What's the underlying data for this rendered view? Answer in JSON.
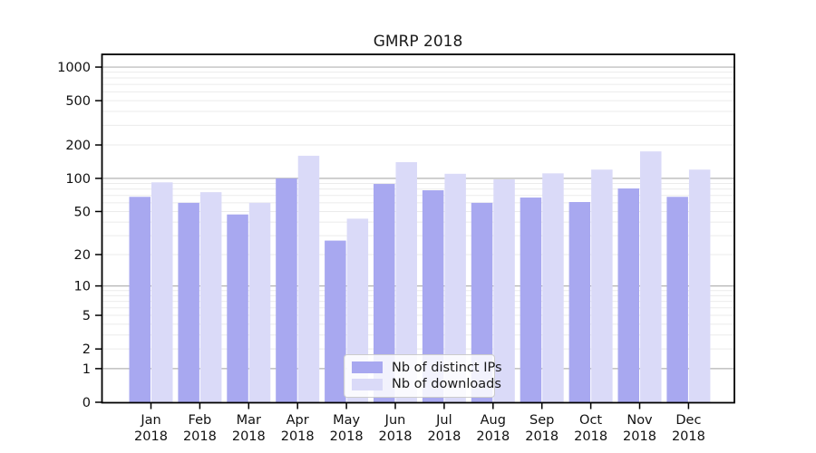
{
  "chart_data": {
    "type": "bar",
    "title": "GMRP 2018",
    "categories": [
      "Jan 2018",
      "Feb 2018",
      "Mar 2018",
      "Apr 2018",
      "May 2018",
      "Jun 2018",
      "Jul 2018",
      "Aug 2018",
      "Sep 2018",
      "Oct 2018",
      "Nov 2018",
      "Dec 2018"
    ],
    "series": [
      {
        "name": "Nb of distinct IPs",
        "color": "#a8a8f0",
        "values": [
          68,
          60,
          47,
          100,
          27,
          89,
          78,
          60,
          67,
          61,
          81,
          68
        ]
      },
      {
        "name": "Nb of downloads",
        "color": "#dadaf8",
        "values": [
          92,
          75,
          60,
          160,
          43,
          140,
          110,
          98,
          111,
          120,
          175,
          120
        ]
      }
    ],
    "xlabel": "",
    "ylabel": "",
    "yscale": "log10(value+1)",
    "ylim": [
      0,
      1300
    ],
    "yticks": [
      0,
      1,
      2,
      5,
      10,
      20,
      50,
      100,
      200,
      500,
      1000
    ],
    "major_gridlines": [
      1,
      10,
      100,
      1000
    ],
    "grid": true,
    "legend_position": "lower center",
    "colors": {
      "background": "#ffffff",
      "axis": "#000000",
      "grid_major": "#b3b3b3",
      "grid_minor": "#ebebeb",
      "text": "#1a1a1a",
      "legend_border": "#cccccc",
      "legend_bg": "rgba(255,255,255,0.85)"
    }
  }
}
